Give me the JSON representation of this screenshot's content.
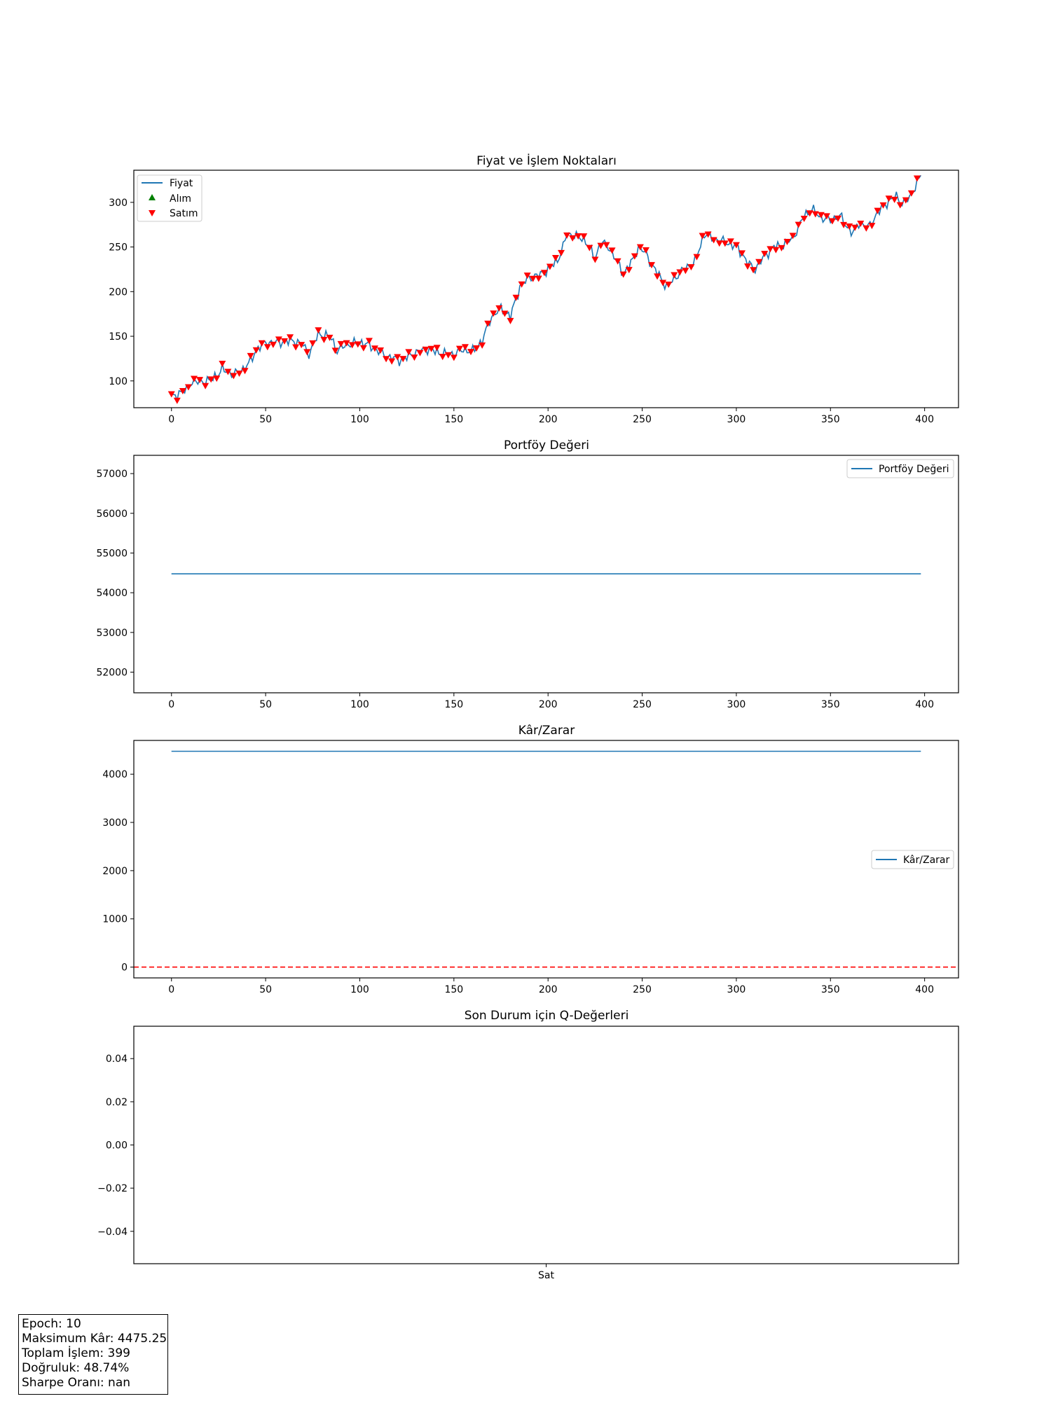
{
  "chart_data": [
    {
      "type": "line",
      "title": "Fiyat ve İşlem Noktaları",
      "xlabel": "",
      "ylabel": "",
      "xlim": [
        -20,
        418
      ],
      "ylim": [
        70,
        336
      ],
      "xticks": [
        0,
        50,
        100,
        150,
        200,
        250,
        300,
        350,
        400
      ],
      "yticks": [
        100,
        150,
        200,
        250,
        300
      ],
      "legend_position": "upper left",
      "legend": [
        "Fiyat",
        "Alım",
        "Satım"
      ],
      "series": [
        {
          "name": "Fiyat",
          "color": "#1f77b4",
          "x_range": [
            0,
            398
          ],
          "anchors": [
            [
              0,
              82
            ],
            [
              5,
              87
            ],
            [
              8,
              90
            ],
            [
              10,
              98
            ],
            [
              20,
              100
            ],
            [
              25,
              108
            ],
            [
              27,
              113
            ],
            [
              33,
              107
            ],
            [
              38,
              113
            ],
            [
              42,
              122
            ],
            [
              45,
              135
            ],
            [
              50,
              143
            ],
            [
              55,
              143
            ],
            [
              65,
              145
            ],
            [
              70,
              140
            ],
            [
              73,
              130
            ],
            [
              78,
              153
            ],
            [
              85,
              148
            ],
            [
              88,
              133
            ],
            [
              92,
              140
            ],
            [
              100,
              143
            ],
            [
              105,
              140
            ],
            [
              110,
              133
            ],
            [
              115,
              127
            ],
            [
              122,
              123
            ],
            [
              128,
              130
            ],
            [
              135,
              136
            ],
            [
              145,
              130
            ],
            [
              150,
              130
            ],
            [
              155,
              135
            ],
            [
              160,
              133
            ],
            [
              165,
              145
            ],
            [
              170,
              172
            ],
            [
              175,
              181
            ],
            [
              180,
              172
            ],
            [
              185,
              205
            ],
            [
              190,
              216
            ],
            [
              195,
              218
            ],
            [
              200,
              225
            ],
            [
              205,
              235
            ],
            [
              208,
              250
            ],
            [
              210,
              265
            ],
            [
              215,
              262
            ],
            [
              220,
              257
            ],
            [
              225,
              237
            ],
            [
              228,
              256
            ],
            [
              232,
              250
            ],
            [
              235,
              240
            ],
            [
              240,
              220
            ],
            [
              245,
              235
            ],
            [
              248,
              250
            ],
            [
              252,
              243
            ],
            [
              255,
              230
            ],
            [
              260,
              215
            ],
            [
              263,
              205
            ],
            [
              268,
              217
            ],
            [
              272,
              225
            ],
            [
              278,
              233
            ],
            [
              283,
              265
            ],
            [
              287,
              260
            ],
            [
              295,
              255
            ],
            [
              300,
              250
            ],
            [
              303,
              243
            ],
            [
              306,
              232
            ],
            [
              310,
              225
            ],
            [
              315,
              240
            ],
            [
              320,
              250
            ],
            [
              325,
              252
            ],
            [
              330,
              260
            ],
            [
              333,
              272
            ],
            [
              336,
              285
            ],
            [
              340,
              292
            ],
            [
              345,
              283
            ],
            [
              350,
              280
            ],
            [
              355,
              285
            ],
            [
              358,
              275
            ],
            [
              362,
              265
            ],
            [
              365,
              277
            ],
            [
              370,
              272
            ],
            [
              375,
              288
            ],
            [
              380,
              300
            ],
            [
              385,
              307
            ],
            [
              388,
              298
            ],
            [
              392,
              305
            ],
            [
              395,
              318
            ],
            [
              398,
              330
            ]
          ]
        },
        {
          "name": "Alım",
          "color": "#008000",
          "marker": "triangle-up",
          "points": []
        },
        {
          "name": "Satım",
          "color": "#ff0000",
          "marker": "triangle-down",
          "step": 3,
          "x_range": [
            0,
            398
          ]
        }
      ]
    },
    {
      "type": "line",
      "title": "Portföy Değeri",
      "xlabel": "",
      "ylabel": "",
      "xlim": [
        -20,
        418
      ],
      "ylim": [
        51480,
        57460
      ],
      "xticks": [
        0,
        50,
        100,
        150,
        200,
        250,
        300,
        350,
        400
      ],
      "yticks": [
        52000,
        53000,
        54000,
        55000,
        56000,
        57000
      ],
      "legend_position": "upper right",
      "series": [
        {
          "name": "Portföy Değeri",
          "color": "#1f77b4",
          "x": [
            0,
            398
          ],
          "y": [
            54475.25,
            54475.25
          ]
        }
      ]
    },
    {
      "type": "line",
      "title": "Kâr/Zarar",
      "xlabel": "",
      "ylabel": "",
      "xlim": [
        -20,
        418
      ],
      "ylim": [
        -224,
        4700
      ],
      "xticks": [
        0,
        50,
        100,
        150,
        200,
        250,
        300,
        350,
        400
      ],
      "yticks": [
        0,
        1000,
        2000,
        3000,
        4000
      ],
      "legend_position": "center right",
      "series": [
        {
          "name": "Kâr/Zarar",
          "color": "#1f77b4",
          "x": [
            0,
            398
          ],
          "y": [
            4475.25,
            4475.25
          ]
        }
      ],
      "hlines": [
        {
          "y": 0,
          "color": "#ff0000",
          "style": "dashed"
        }
      ]
    },
    {
      "type": "bar",
      "title": "Son Durum için Q-Değerleri",
      "xlabel": "",
      "ylabel": "",
      "categories": [
        "Sat"
      ],
      "values": [
        0
      ],
      "ylim": [
        -0.055,
        0.055
      ],
      "yticks": [
        -0.04,
        -0.02,
        0.0,
        0.02,
        0.04
      ],
      "ytick_labels": [
        "−0.04",
        "−0.02",
        "0.00",
        "0.02",
        "0.04"
      ]
    }
  ],
  "stats": {
    "epoch": "Epoch: 10",
    "max_profit": "Maksimum Kâr: 4475.25",
    "total_trades": "Toplam İşlem: 399",
    "accuracy": "Doğruluk: 48.74%",
    "sharpe": "Sharpe Oranı: nan"
  }
}
